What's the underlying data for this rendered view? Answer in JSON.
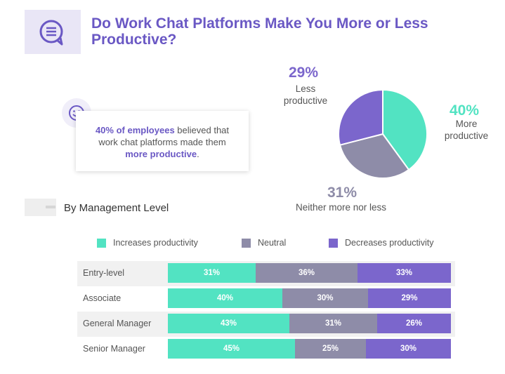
{
  "title": "Do Work Chat Platforms Make You More or Less Productive?",
  "callout": {
    "highlight": "40% of employees",
    "text_a": "believed that work chat platforms made them",
    "highlight2": "more productive",
    "end": "."
  },
  "section_title": "By Management Level",
  "icons": {
    "header": "chat-bubble-icon",
    "callout": "smiley-icon"
  },
  "colors": {
    "increases": "#52e3c2",
    "neutral": "#8e8ca8",
    "decreases": "#7b66cc",
    "title": "#6a58c4"
  },
  "chart_data": [
    {
      "type": "pie",
      "slices": [
        {
          "label": "More productive",
          "value": 40,
          "display": "40%",
          "color": "#52e3c2"
        },
        {
          "label": "Neither more nor less",
          "value": 31,
          "display": "31%",
          "color": "#8e8ca8"
        },
        {
          "label": "Less productive",
          "value": 29,
          "display": "29%",
          "color": "#7b66cc"
        }
      ]
    },
    {
      "type": "bar",
      "stacked": true,
      "orientation": "horizontal",
      "categories": [
        "Entry-level",
        "Associate",
        "General Manager",
        "Senior Manager"
      ],
      "series": [
        {
          "name": "Increases productivity",
          "values": [
            31,
            40,
            43,
            45
          ],
          "color": "#52e3c2"
        },
        {
          "name": "Neutral",
          "values": [
            36,
            30,
            31,
            25
          ],
          "color": "#8e8ca8"
        },
        {
          "name": "Decreases productivity",
          "values": [
            33,
            29,
            26,
            30
          ],
          "color": "#7b66cc"
        }
      ],
      "legend": "top"
    }
  ]
}
